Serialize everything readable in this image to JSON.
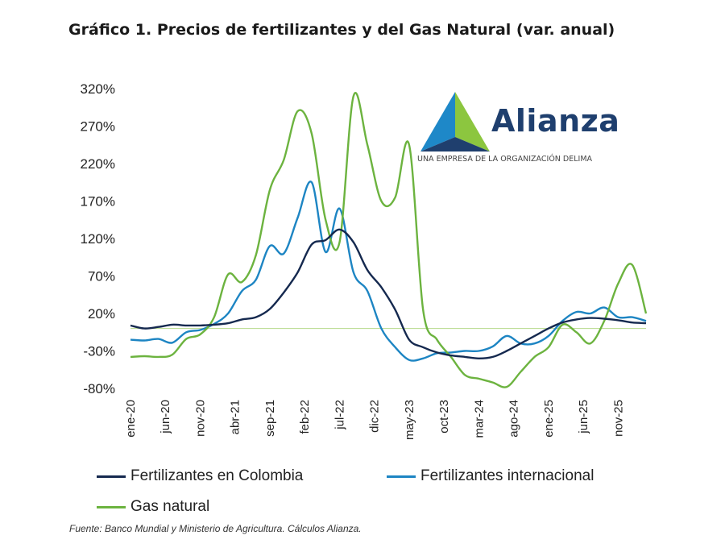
{
  "title": "Gráfico 1. Precios de fertilizantes y del Gas Natural (var. anual)",
  "source": "Fuente: Banco Mundial y Ministerio de Agricultura. Cálculos Alianza.",
  "logo": {
    "name": "Alianza",
    "tagline": "UNA EMPRESA DE LA ORGANIZACIÓN DELIMA",
    "colors": [
      "#1f3f6e",
      "#1e88c8",
      "#8cc63f"
    ]
  },
  "chart_data": {
    "type": "line",
    "title": "Gráfico 1. Precios de fertilizantes y del Gas Natural (var. anual)",
    "xlabel": "",
    "ylabel": "",
    "ylim": [
      -80,
      320
    ],
    "ytick_labels": [
      "320%",
      "270%",
      "220%",
      "170%",
      "120%",
      "70%",
      "20%",
      "-30%",
      "-80%"
    ],
    "xtick_labels": [
      "ene-20",
      "jun-20",
      "nov-20",
      "abr-21",
      "sep-21",
      "feb-22",
      "jul-22",
      "dic-22",
      "may-23",
      "oct-23",
      "mar-24",
      "ago-24",
      "ene-25",
      "jun-25",
      "nov-25"
    ],
    "grid": false,
    "zero_line": true,
    "legend_position": "bottom",
    "x_range": [
      "2020-01",
      "2026-03"
    ],
    "series": [
      {
        "name": "Fertilizantes en Colombia",
        "color": "#15294f",
        "points": [
          [
            "2020-01",
            4
          ],
          [
            "2020-03",
            0
          ],
          [
            "2020-05",
            2
          ],
          [
            "2020-07",
            5
          ],
          [
            "2020-09",
            4
          ],
          [
            "2020-11",
            4
          ],
          [
            "2021-01",
            5
          ],
          [
            "2021-03",
            7
          ],
          [
            "2021-05",
            12
          ],
          [
            "2021-07",
            15
          ],
          [
            "2021-09",
            26
          ],
          [
            "2021-11",
            48
          ],
          [
            "2022-01",
            75
          ],
          [
            "2022-03",
            112
          ],
          [
            "2022-05",
            118
          ],
          [
            "2022-07",
            132
          ],
          [
            "2022-09",
            115
          ],
          [
            "2022-11",
            78
          ],
          [
            "2023-01",
            55
          ],
          [
            "2023-03",
            25
          ],
          [
            "2023-05",
            -15
          ],
          [
            "2023-07",
            -25
          ],
          [
            "2023-09",
            -32
          ],
          [
            "2023-11",
            -36
          ],
          [
            "2024-01",
            -38
          ],
          [
            "2024-03",
            -40
          ],
          [
            "2024-05",
            -38
          ],
          [
            "2024-07",
            -30
          ],
          [
            "2024-09",
            -20
          ],
          [
            "2024-11",
            -10
          ],
          [
            "2025-01",
            0
          ],
          [
            "2025-03",
            8
          ],
          [
            "2025-05",
            12
          ],
          [
            "2025-07",
            14
          ],
          [
            "2025-09",
            13
          ],
          [
            "2025-11",
            11
          ],
          [
            "2026-01",
            8
          ],
          [
            "2026-03",
            7
          ]
        ]
      },
      {
        "name": "Fertilizantes internacional",
        "color": "#1d85c3",
        "points": [
          [
            "2020-01",
            -15
          ],
          [
            "2020-03",
            -16
          ],
          [
            "2020-05",
            -14
          ],
          [
            "2020-07",
            -19
          ],
          [
            "2020-09",
            -5
          ],
          [
            "2020-11",
            -2
          ],
          [
            "2021-01",
            6
          ],
          [
            "2021-03",
            20
          ],
          [
            "2021-05",
            50
          ],
          [
            "2021-07",
            65
          ],
          [
            "2021-09",
            110
          ],
          [
            "2021-11",
            100
          ],
          [
            "2022-01",
            148
          ],
          [
            "2022-03",
            195
          ],
          [
            "2022-05",
            102
          ],
          [
            "2022-07",
            160
          ],
          [
            "2022-09",
            75
          ],
          [
            "2022-11",
            50
          ],
          [
            "2023-01",
            0
          ],
          [
            "2023-03",
            -25
          ],
          [
            "2023-05",
            -42
          ],
          [
            "2023-07",
            -40
          ],
          [
            "2023-09",
            -33
          ],
          [
            "2023-11",
            -32
          ],
          [
            "2024-01",
            -30
          ],
          [
            "2024-03",
            -30
          ],
          [
            "2024-05",
            -24
          ],
          [
            "2024-07",
            -10
          ],
          [
            "2024-09",
            -20
          ],
          [
            "2024-11",
            -20
          ],
          [
            "2025-01",
            -10
          ],
          [
            "2025-03",
            10
          ],
          [
            "2025-05",
            22
          ],
          [
            "2025-07",
            20
          ],
          [
            "2025-09",
            28
          ],
          [
            "2025-11",
            15
          ],
          [
            "2026-01",
            15
          ],
          [
            "2026-03",
            10
          ]
        ]
      },
      {
        "name": "Gas natural",
        "color": "#6cb33f",
        "points": [
          [
            "2020-01",
            -38
          ],
          [
            "2020-03",
            -37
          ],
          [
            "2020-05",
            -38
          ],
          [
            "2020-07",
            -35
          ],
          [
            "2020-09",
            -14
          ],
          [
            "2020-11",
            -8
          ],
          [
            "2021-01",
            15
          ],
          [
            "2021-03",
            72
          ],
          [
            "2021-05",
            62
          ],
          [
            "2021-07",
            98
          ],
          [
            "2021-09",
            185
          ],
          [
            "2021-11",
            225
          ],
          [
            "2022-01",
            290
          ],
          [
            "2022-03",
            260
          ],
          [
            "2022-05",
            145
          ],
          [
            "2022-07",
            115
          ],
          [
            "2022-09",
            310
          ],
          [
            "2022-11",
            245
          ],
          [
            "2023-01",
            170
          ],
          [
            "2023-03",
            175
          ],
          [
            "2023-05",
            245
          ],
          [
            "2023-07",
            25
          ],
          [
            "2023-09",
            -15
          ],
          [
            "2023-11",
            -38
          ],
          [
            "2024-01",
            -62
          ],
          [
            "2024-03",
            -67
          ],
          [
            "2024-05",
            -72
          ],
          [
            "2024-07",
            -78
          ],
          [
            "2024-09",
            -58
          ],
          [
            "2024-11",
            -38
          ],
          [
            "2025-01",
            -25
          ],
          [
            "2025-03",
            5
          ],
          [
            "2025-05",
            -5
          ],
          [
            "2025-07",
            -20
          ],
          [
            "2025-09",
            10
          ],
          [
            "2025-11",
            60
          ],
          [
            "2026-01",
            85
          ],
          [
            "2026-03",
            20
          ]
        ]
      }
    ]
  }
}
